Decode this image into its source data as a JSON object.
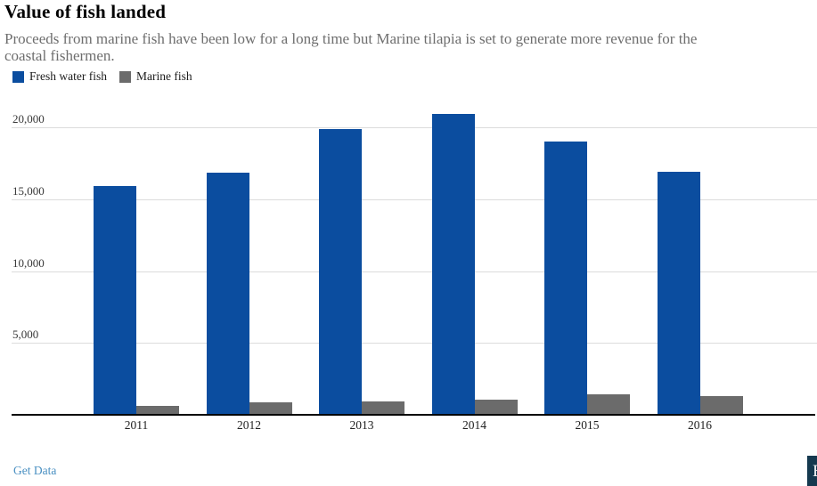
{
  "header": {
    "title": "Value of fish landed",
    "subtitle": "Proceeds from marine fish have been low for a long time but Marine tilapia is set to generate more revenue for the coastal fishermen.",
    "subtitle_lines": [
      "Proceeds from marine fish have been low for a long time but Marine tilapia is set to generate more revenue for the",
      "coastal fishermen."
    ]
  },
  "legend": [
    {
      "label": "Fresh water fish",
      "color": "#0b4d9f"
    },
    {
      "label": "Marine fish",
      "color": "#6b6b6b"
    }
  ],
  "chart_data": {
    "type": "bar",
    "title": "Value of fish landed",
    "categories": [
      "2011",
      "2012",
      "2013",
      "2014",
      "2015",
      "2016"
    ],
    "series": [
      {
        "name": "Fresh water fish",
        "color": "#0b4d9f",
        "values": [
          15900,
          16850,
          19900,
          20900,
          19000,
          16900
        ]
      },
      {
        "name": "Marine fish",
        "color": "#6b6b6b",
        "values": [
          600,
          850,
          950,
          1050,
          1400,
          1300
        ]
      }
    ],
    "xlabel": "",
    "ylabel": "",
    "ylim": [
      0,
      21500
    ],
    "yticks": [
      5000,
      10000,
      15000,
      20000
    ],
    "ytick_labels": [
      "5,000",
      "10,000",
      "15,000",
      "20,000"
    ],
    "grid": true,
    "legend_position": "top-left"
  },
  "footer": {
    "get_data_label": "Get Data"
  },
  "logo": {
    "letter": "B",
    "background": "#15394f"
  }
}
